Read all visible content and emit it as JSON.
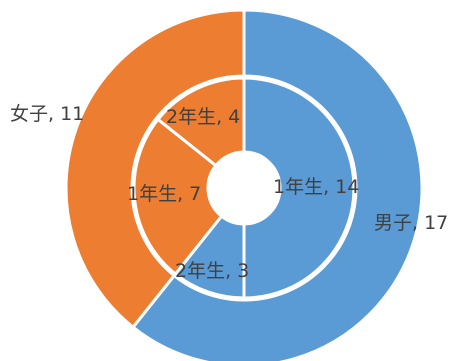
{
  "chart_data": {
    "type": "pie",
    "subtype": "nested-donut",
    "series": [
      {
        "ring": "outer",
        "slices": [
          {
            "label": "男子",
            "value": 17,
            "display": "男子, 17",
            "color": "#5B9BD5"
          },
          {
            "label": "女子",
            "value": 11,
            "display": "女子, 11",
            "color": "#ED7D31"
          }
        ]
      },
      {
        "ring": "inner",
        "slices": [
          {
            "label": "1年生",
            "value": 14,
            "display": "1年生, 14",
            "color": "#5B9BD5"
          },
          {
            "label": "2年生",
            "value": 3,
            "display": "2年生, 3",
            "color": "#5B9BD5"
          },
          {
            "label": "1年生",
            "value": 7,
            "display": "1年生, 7",
            "color": "#ED7D31"
          },
          {
            "label": "2年生",
            "value": 4,
            "display": "2年生, 4",
            "color": "#ED7D31"
          }
        ]
      }
    ],
    "title": "",
    "legend": "none"
  }
}
